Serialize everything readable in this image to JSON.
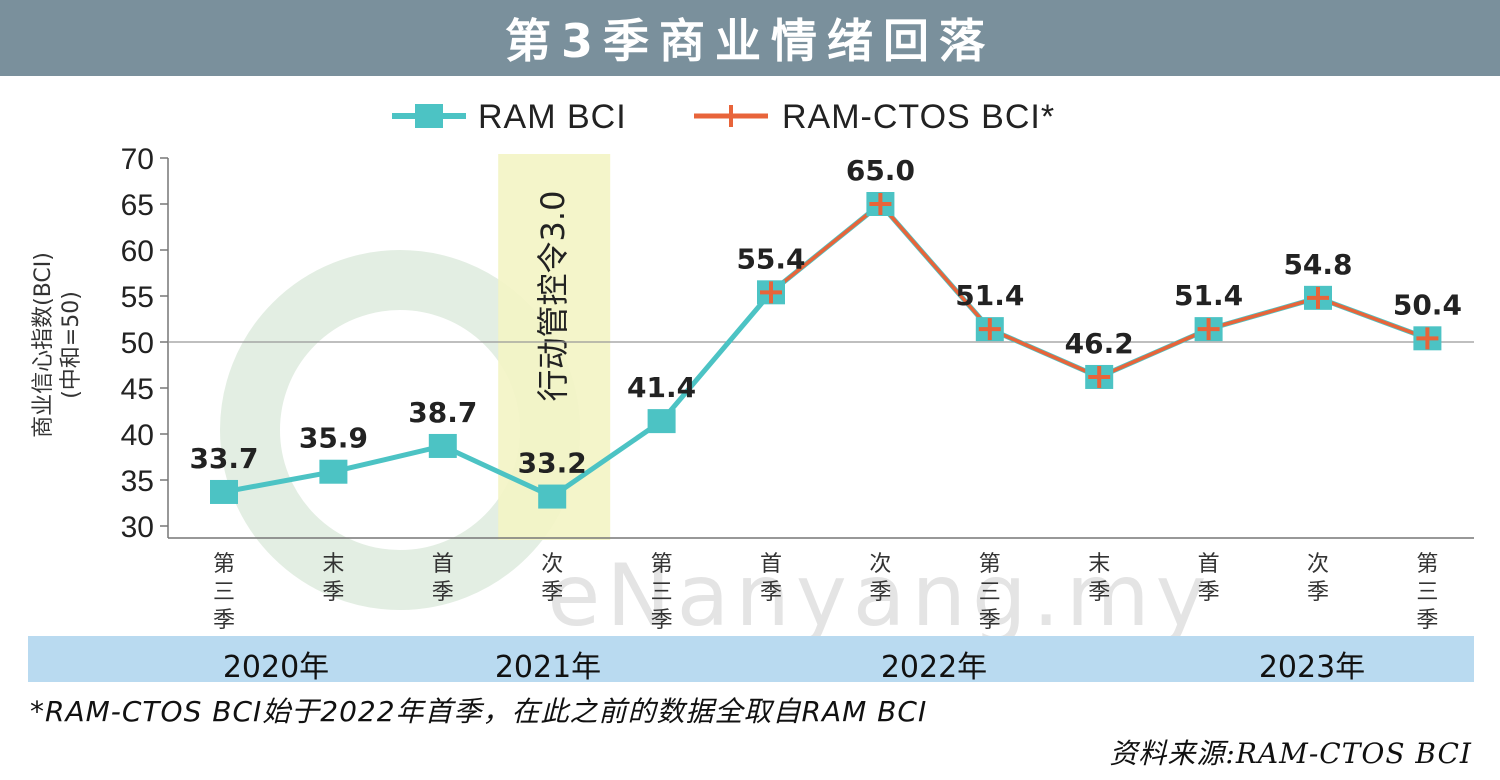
{
  "title": "第3季商业情绪回落",
  "legend": [
    {
      "label": "RAM BCI",
      "color": "#4cc3c4"
    },
    {
      "label": "RAM-CTOS BCI*",
      "color": "#e8643a"
    }
  ],
  "ylabel_main": "商业信心指数(BCI)",
  "ylabel_sub": "(中和=50)",
  "highlight_label": "行动管控令3.0",
  "watermark": "eNanyang.my",
  "years": [
    "2020年",
    "2021年",
    "2022年",
    "2023年"
  ],
  "footnote": "*RAM-CTOS BCI始于2022年首季，在此之前的数据全取自RAM BCI",
  "source": "资料来源:RAM-CTOS BCI",
  "chart_data": {
    "type": "line",
    "categories": [
      "第三季",
      "末季",
      "首季",
      "次季",
      "第三季",
      "首季",
      "次季",
      "第三季",
      "末季",
      "首季",
      "次季",
      "第三季"
    ],
    "series": [
      {
        "name": "RAM BCI",
        "values": [
          33.7,
          35.9,
          38.7,
          33.2,
          41.4,
          55.4,
          65.0,
          51.4,
          46.2,
          51.4,
          54.8,
          50.4
        ]
      },
      {
        "name": "RAM-CTOS BCI*",
        "values": [
          null,
          null,
          null,
          null,
          null,
          55.4,
          65.0,
          51.4,
          46.2,
          51.4,
          54.8,
          50.4
        ]
      }
    ],
    "data_labels": [
      "33.7",
      "35.9",
      "38.7",
      "33.2",
      "41.4",
      "55.4",
      "65.0",
      "51.4",
      "46.2",
      "51.4",
      "54.8",
      "50.4"
    ],
    "ylim": [
      30,
      70
    ],
    "yticks": [
      30,
      35,
      40,
      45,
      50,
      55,
      60,
      65,
      70
    ],
    "reference_line": 50,
    "highlight_category_index": 3,
    "grid": false,
    "legend_position": "top"
  }
}
